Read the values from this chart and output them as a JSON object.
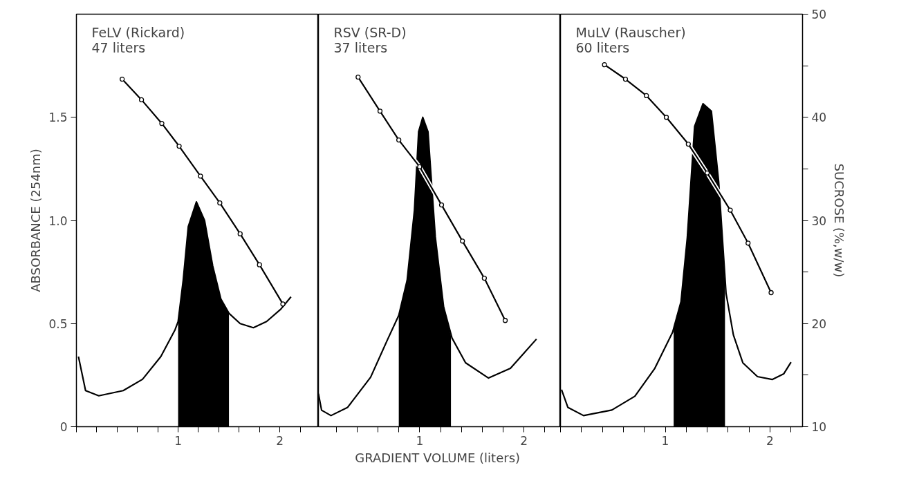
{
  "chart_data": [
    {
      "type": "line",
      "title": "FeLV (Rickard)",
      "subtitle": "47 liters",
      "ylabel": "ABSORBANCE (254nm)",
      "xlim": [
        0,
        2.38
      ],
      "ylim": [
        0,
        2.0
      ],
      "y2lim": [
        10,
        50
      ],
      "xticks": [
        {
          "value": 0,
          "label": null
        },
        {
          "value": 0.2,
          "label": null
        },
        {
          "value": 0.4,
          "label": null
        },
        {
          "value": 0.6,
          "label": null
        },
        {
          "value": 0.8,
          "label": null
        },
        1,
        {
          "value": 1.2,
          "label": null
        },
        {
          "value": 1.4,
          "label": null
        },
        {
          "value": 1.6,
          "label": null
        },
        {
          "value": 1.8,
          "label": null
        },
        2,
        {
          "value": 2.2,
          "label": null
        }
      ],
      "yticks": [
        0,
        0.5,
        {
          "value": 1,
          "label": "1.0"
        },
        1.5
      ],
      "tick_labels": "xy",
      "grid": false,
      "series": [
        {
          "type": "area",
          "color": "#000000",
          "x": [
            1.0,
            1.05,
            1.1,
            1.18,
            1.26,
            1.34,
            1.42,
            1.5
          ],
          "values": [
            0.51,
            0.71,
            0.97,
            1.09,
            1.0,
            0.78,
            0.62,
            0.55
          ]
        },
        {
          "color": "#000000",
          "marker": "none",
          "x": [
            0.02,
            0.09,
            0.22,
            0.46,
            0.65,
            0.83,
            0.97,
            1.0,
            1.05,
            1.1,
            1.18,
            1.26,
            1.34,
            1.42,
            1.5,
            1.61,
            1.74,
            1.87,
            2.01,
            2.11
          ],
          "values": [
            0.34,
            0.175,
            0.15,
            0.175,
            0.23,
            0.34,
            0.47,
            0.51,
            0.71,
            0.97,
            1.09,
            1.0,
            0.78,
            0.62,
            0.55,
            0.5,
            0.48,
            0.51,
            0.57,
            0.63
          ]
        },
        {
          "axis": "y2",
          "color": "#000000",
          "marker": "circle",
          "x": [
            0.45,
            0.64,
            0.84,
            1.01,
            1.22,
            1.41,
            1.61,
            1.8,
            2.03
          ],
          "values": [
            43.7,
            41.7,
            39.4,
            37.2,
            34.3,
            31.7,
            28.7,
            25.7,
            21.9
          ]
        }
      ]
    },
    {
      "type": "line",
      "title": "RSV (SR-D)",
      "subtitle": "37 liters",
      "xlabel": "GRADIENT  VOLUME (liters)",
      "xlim": [
        0.03,
        2.35
      ],
      "ylim": [
        0,
        2.0
      ],
      "y2lim": [
        10,
        50
      ],
      "xticks": [
        {
          "value": 0.2,
          "label": null
        },
        {
          "value": 0.4,
          "label": null
        },
        {
          "value": 0.6,
          "label": null
        },
        {
          "value": 0.8,
          "label": null
        },
        1,
        {
          "value": 1.2,
          "label": null
        },
        {
          "value": 1.4,
          "label": null
        },
        {
          "value": 1.6,
          "label": null
        },
        {
          "value": 1.8,
          "label": null
        },
        2,
        {
          "value": 2.2,
          "label": null
        }
      ],
      "tick_labels": "x",
      "grid": false,
      "series": [
        {
          "type": "area",
          "color": "#000000",
          "x": [
            0.8,
            0.88,
            0.95,
            0.99,
            1.03,
            1.08,
            1.15,
            1.23,
            1.3
          ],
          "values": [
            0.54,
            0.71,
            1.05,
            1.43,
            1.5,
            1.43,
            0.92,
            0.58,
            0.44
          ]
        },
        {
          "color": "#000000",
          "marker": "none",
          "x": [
            0.03,
            0.06,
            0.15,
            0.31,
            0.53,
            0.69,
            0.8,
            0.88,
            0.95,
            0.99,
            1.03,
            1.08,
            1.15,
            1.23,
            1.31,
            1.44,
            1.66,
            1.87,
            2.12
          ],
          "values": [
            0.16,
            0.08,
            0.054,
            0.094,
            0.24,
            0.42,
            0.54,
            0.71,
            1.05,
            1.43,
            1.5,
            1.43,
            0.92,
            0.58,
            0.43,
            0.31,
            0.236,
            0.283,
            0.425
          ]
        },
        {
          "axis": "y2",
          "color": "#000000",
          "marker": "circle",
          "x": [
            0.41,
            0.62,
            0.8,
            1.0,
            1.21,
            1.41,
            1.62,
            1.82
          ],
          "values": [
            43.9,
            40.6,
            37.8,
            35.2,
            31.5,
            28.0,
            24.4,
            20.3
          ]
        }
      ]
    },
    {
      "type": "line",
      "title": "MuLV (Rauscher)",
      "subtitle": "60 liters",
      "y2label": "SUCROSE (%,w/w)",
      "xlim": [
        0,
        2.31
      ],
      "ylim": [
        0,
        2.0
      ],
      "y2lim": [
        10,
        50
      ],
      "xticks": [
        {
          "value": 0,
          "label": null
        },
        {
          "value": 0.2,
          "label": null
        },
        {
          "value": 0.4,
          "label": null
        },
        {
          "value": 0.6,
          "label": null
        },
        {
          "value": 0.8,
          "label": null
        },
        1,
        {
          "value": 1.2,
          "label": null
        },
        {
          "value": 1.4,
          "label": null
        },
        {
          "value": 1.6,
          "label": null
        },
        {
          "value": 1.8,
          "label": null
        },
        2,
        {
          "value": 2.2,
          "label": null
        }
      ],
      "y2ticks": [
        10,
        {
          "value": 15,
          "label": null
        },
        20,
        {
          "value": 25,
          "label": null
        },
        30,
        {
          "value": 35,
          "label": null
        },
        40,
        {
          "value": 45,
          "label": null
        },
        50
      ],
      "tick_labels": "x,y2",
      "grid": false,
      "series": [
        {
          "type": "area",
          "color": "#000000",
          "x": [
            1.08,
            1.15,
            1.21,
            1.28,
            1.36,
            1.44,
            1.51,
            1.57
          ],
          "values": [
            0.48,
            0.606,
            0.916,
            1.456,
            1.566,
            1.53,
            1.186,
            0.7
          ]
        },
        {
          "color": "#000000",
          "marker": "none",
          "x": [
            0.01,
            0.07,
            0.22,
            0.49,
            0.71,
            0.9,
            1.07,
            1.15,
            1.21,
            1.28,
            1.36,
            1.44,
            1.51,
            1.58,
            1.65,
            1.74,
            1.88,
            2.02,
            2.13,
            2.2
          ],
          "values": [
            0.18,
            0.094,
            0.054,
            0.081,
            0.148,
            0.283,
            0.458,
            0.606,
            0.916,
            1.456,
            1.566,
            1.53,
            1.186,
            0.647,
            0.445,
            0.31,
            0.243,
            0.229,
            0.256,
            0.313
          ]
        },
        {
          "axis": "y2",
          "color": "#000000",
          "marker": "circle",
          "x": [
            0.42,
            0.62,
            0.82,
            1.01,
            1.22,
            1.4,
            1.62,
            1.79,
            2.01
          ],
          "values": [
            45.1,
            43.7,
            42.1,
            40.0,
            37.4,
            34.6,
            31.0,
            27.8,
            23.0
          ]
        }
      ]
    }
  ]
}
